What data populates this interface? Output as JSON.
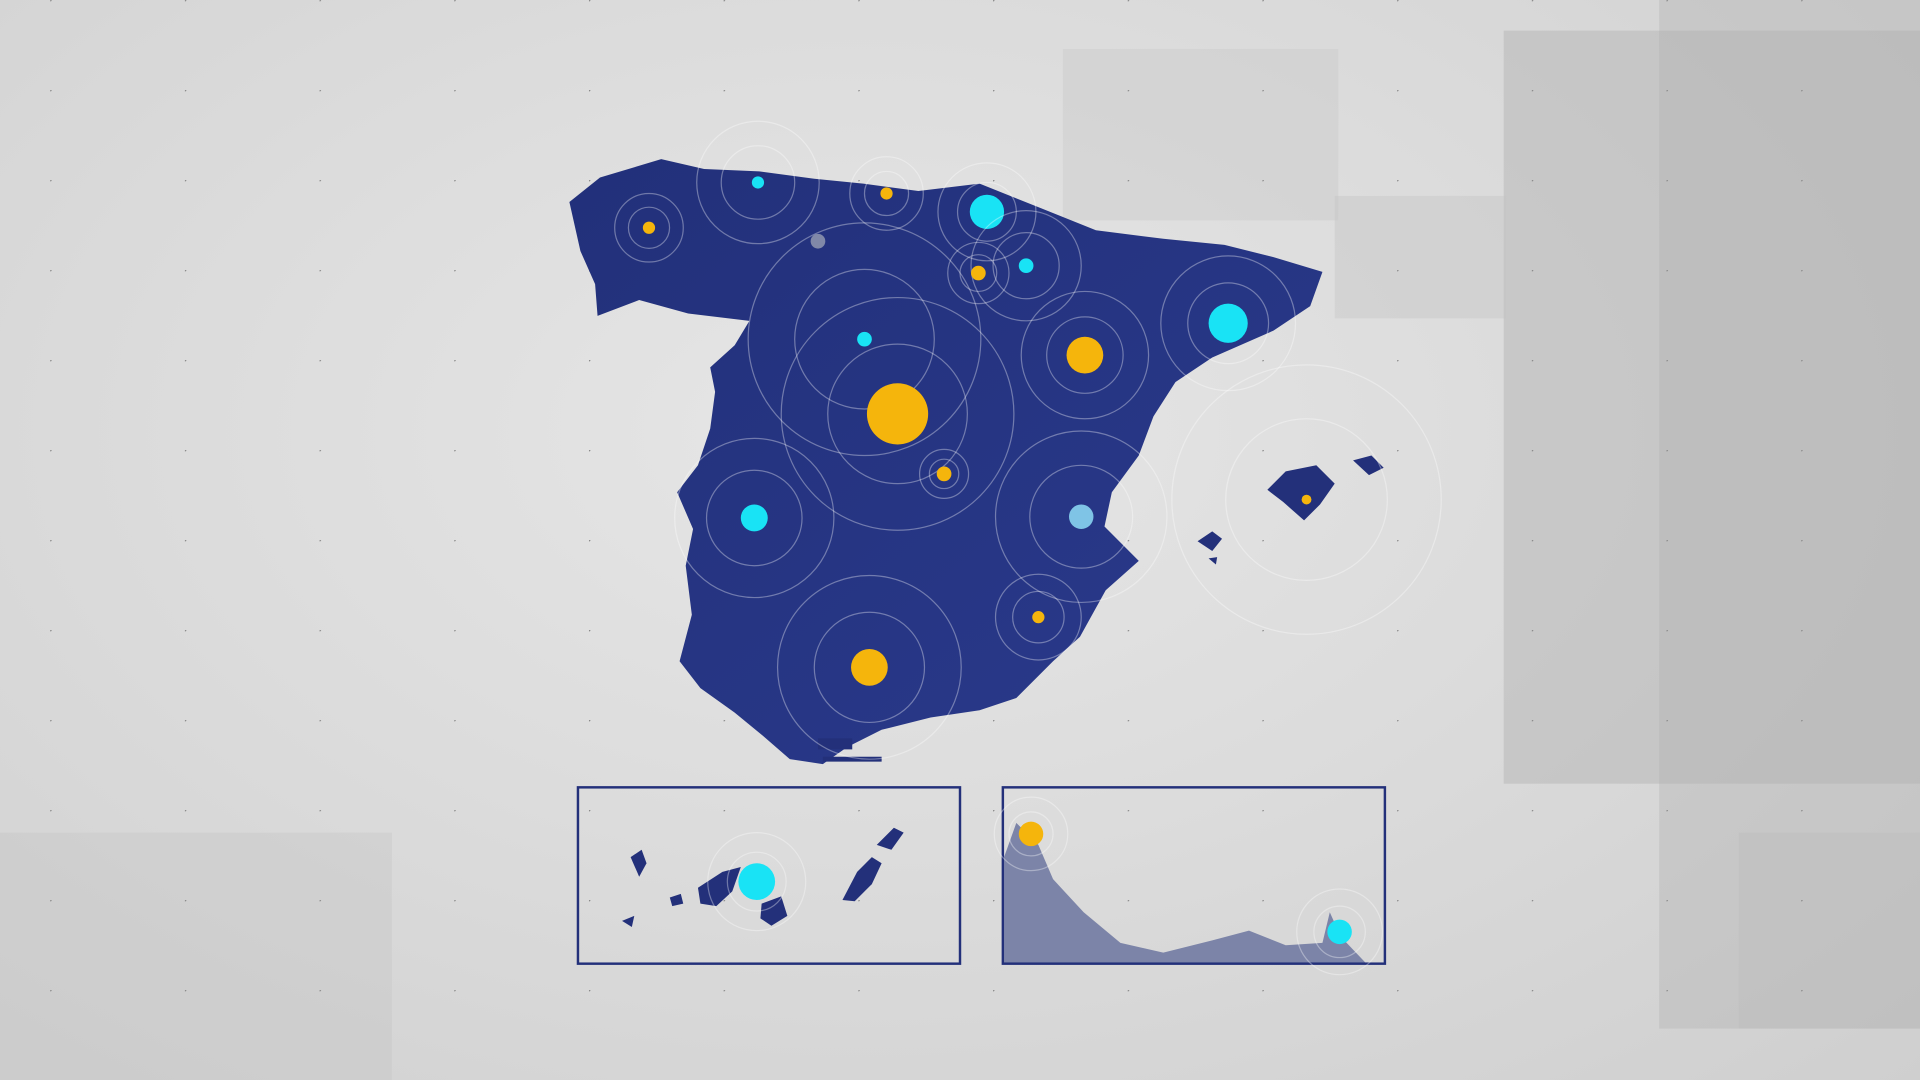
{
  "colors": {
    "land": "#23307a",
    "land_inset": "#7c84a8",
    "orange": "#f5b50c",
    "cyan": "#19e3f5",
    "lightblue": "#7fc4e6",
    "grey": "#8088a8",
    "ring": "#ffffff",
    "inset_border": "#23307a"
  },
  "map": {
    "regions": [
      "mainland",
      "balearic-islands",
      "canary-islands",
      "ceuta-melilla"
    ],
    "markers": [
      {
        "type": "orange"
      },
      {
        "type": "cyan"
      },
      {
        "type": "orange"
      },
      {
        "type": "cyan"
      },
      {
        "type": "cyan"
      },
      {
        "type": "orange"
      },
      {
        "type": "grey"
      },
      {
        "type": "cyan"
      },
      {
        "type": "orange"
      },
      {
        "type": "cyan"
      },
      {
        "type": "orange"
      },
      {
        "type": "orange"
      },
      {
        "type": "cyan"
      },
      {
        "type": "lightblue"
      },
      {
        "type": "orange"
      },
      {
        "type": "orange"
      },
      {
        "type": "orange"
      },
      {
        "type": "cyan"
      },
      {
        "type": "orange"
      },
      {
        "type": "cyan"
      }
    ]
  }
}
